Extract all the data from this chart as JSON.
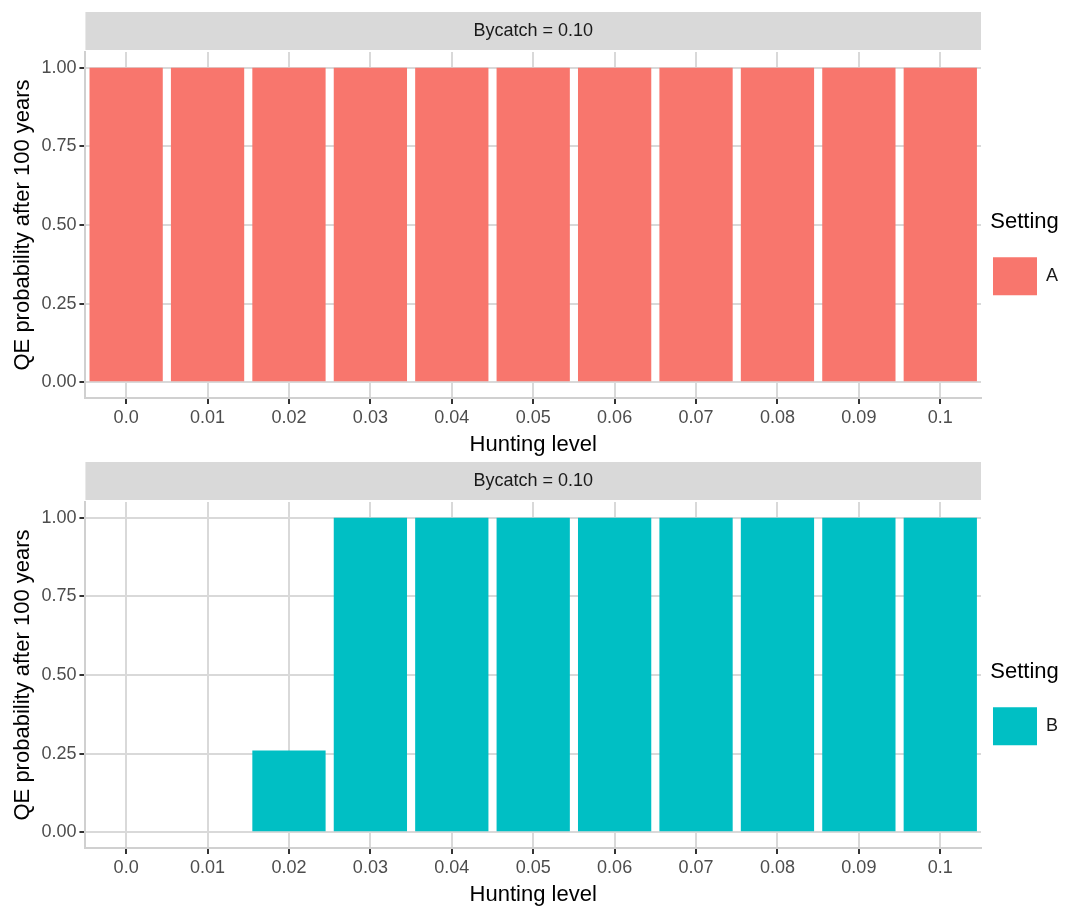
{
  "chart_data": [
    {
      "type": "bar",
      "title": "Bycatch = 0.10",
      "xlabel": "Hunting level",
      "ylabel": "QE probability after 100 years",
      "legend_title": "Setting",
      "categories": [
        "0.0",
        "0.01",
        "0.02",
        "0.03",
        "0.04",
        "0.05",
        "0.06",
        "0.07",
        "0.08",
        "0.09",
        "0.1"
      ],
      "series": [
        {
          "name": "A",
          "color": "#f8766d",
          "values": [
            1,
            1,
            1,
            1,
            1,
            1,
            1,
            1,
            1,
            1,
            1
          ]
        }
      ],
      "ylim": [
        -0.05,
        1.05
      ],
      "yticks": [
        {
          "value": 0,
          "label": "0.00"
        },
        {
          "value": 0.25,
          "label": "0.25"
        },
        {
          "value": 0.5,
          "label": "0.50"
        },
        {
          "value": 0.75,
          "label": "0.75"
        },
        {
          "value": 1,
          "label": "1.00"
        }
      ],
      "grid": true,
      "legend": "right"
    },
    {
      "type": "bar",
      "title": "Bycatch = 0.10",
      "xlabel": "Hunting level",
      "ylabel": "QE probability after 100 years",
      "legend_title": "Setting",
      "categories": [
        "0.0",
        "0.01",
        "0.02",
        "0.03",
        "0.04",
        "0.05",
        "0.06",
        "0.07",
        "0.08",
        "0.09",
        "0.1"
      ],
      "series": [
        {
          "name": "B",
          "color": "#00bfc4",
          "values": [
            0,
            0.003,
            0.26,
            1,
            1,
            1,
            1,
            1,
            1,
            1,
            1
          ]
        }
      ],
      "ylim": [
        -0.05,
        1.05
      ],
      "yticks": [
        {
          "value": 0,
          "label": "0.00"
        },
        {
          "value": 0.25,
          "label": "0.25"
        },
        {
          "value": 0.5,
          "label": "0.50"
        },
        {
          "value": 0.75,
          "label": "0.75"
        },
        {
          "value": 1,
          "label": "1.00"
        }
      ],
      "grid": true,
      "legend": "right"
    }
  ]
}
